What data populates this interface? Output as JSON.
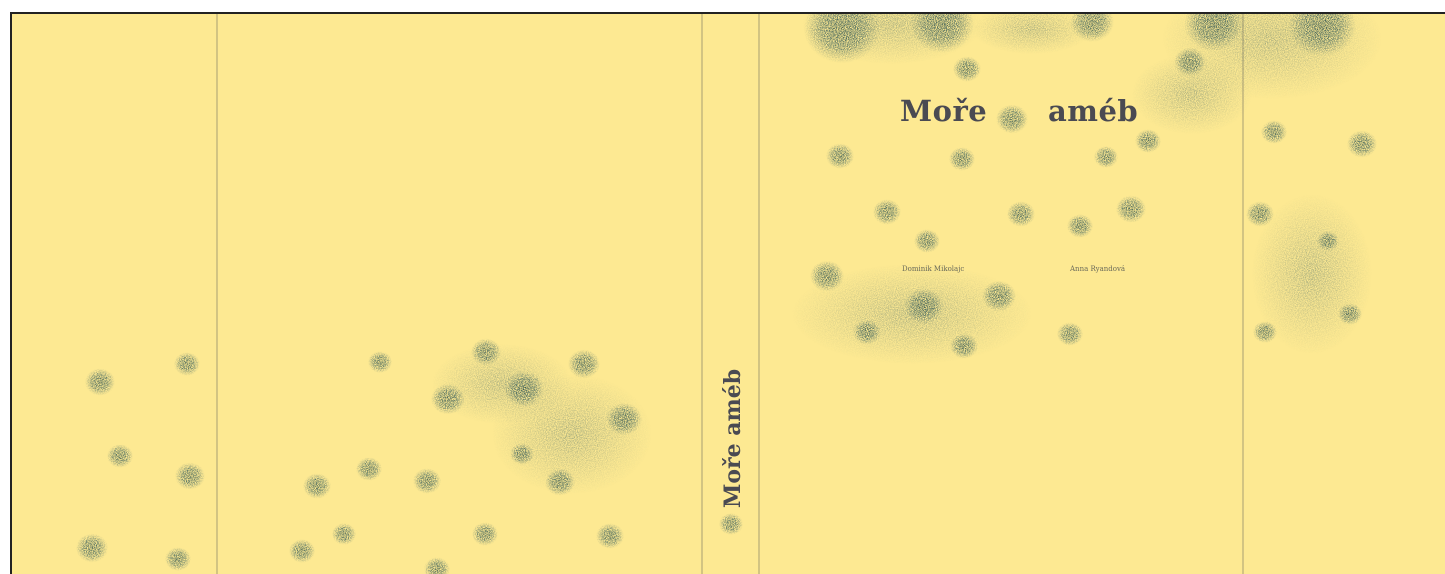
{
  "book": {
    "title_word_1": "Moře",
    "title_word_2": "améb",
    "spine_title": "Moře améb",
    "author_1": "Dominik Mikolajc",
    "author_2": "Anna Ryandová"
  },
  "colors": {
    "paper": "#fde992",
    "ink": "#3f5f5a",
    "title": "#4a4a52",
    "fold_line": "#b7ab78"
  }
}
